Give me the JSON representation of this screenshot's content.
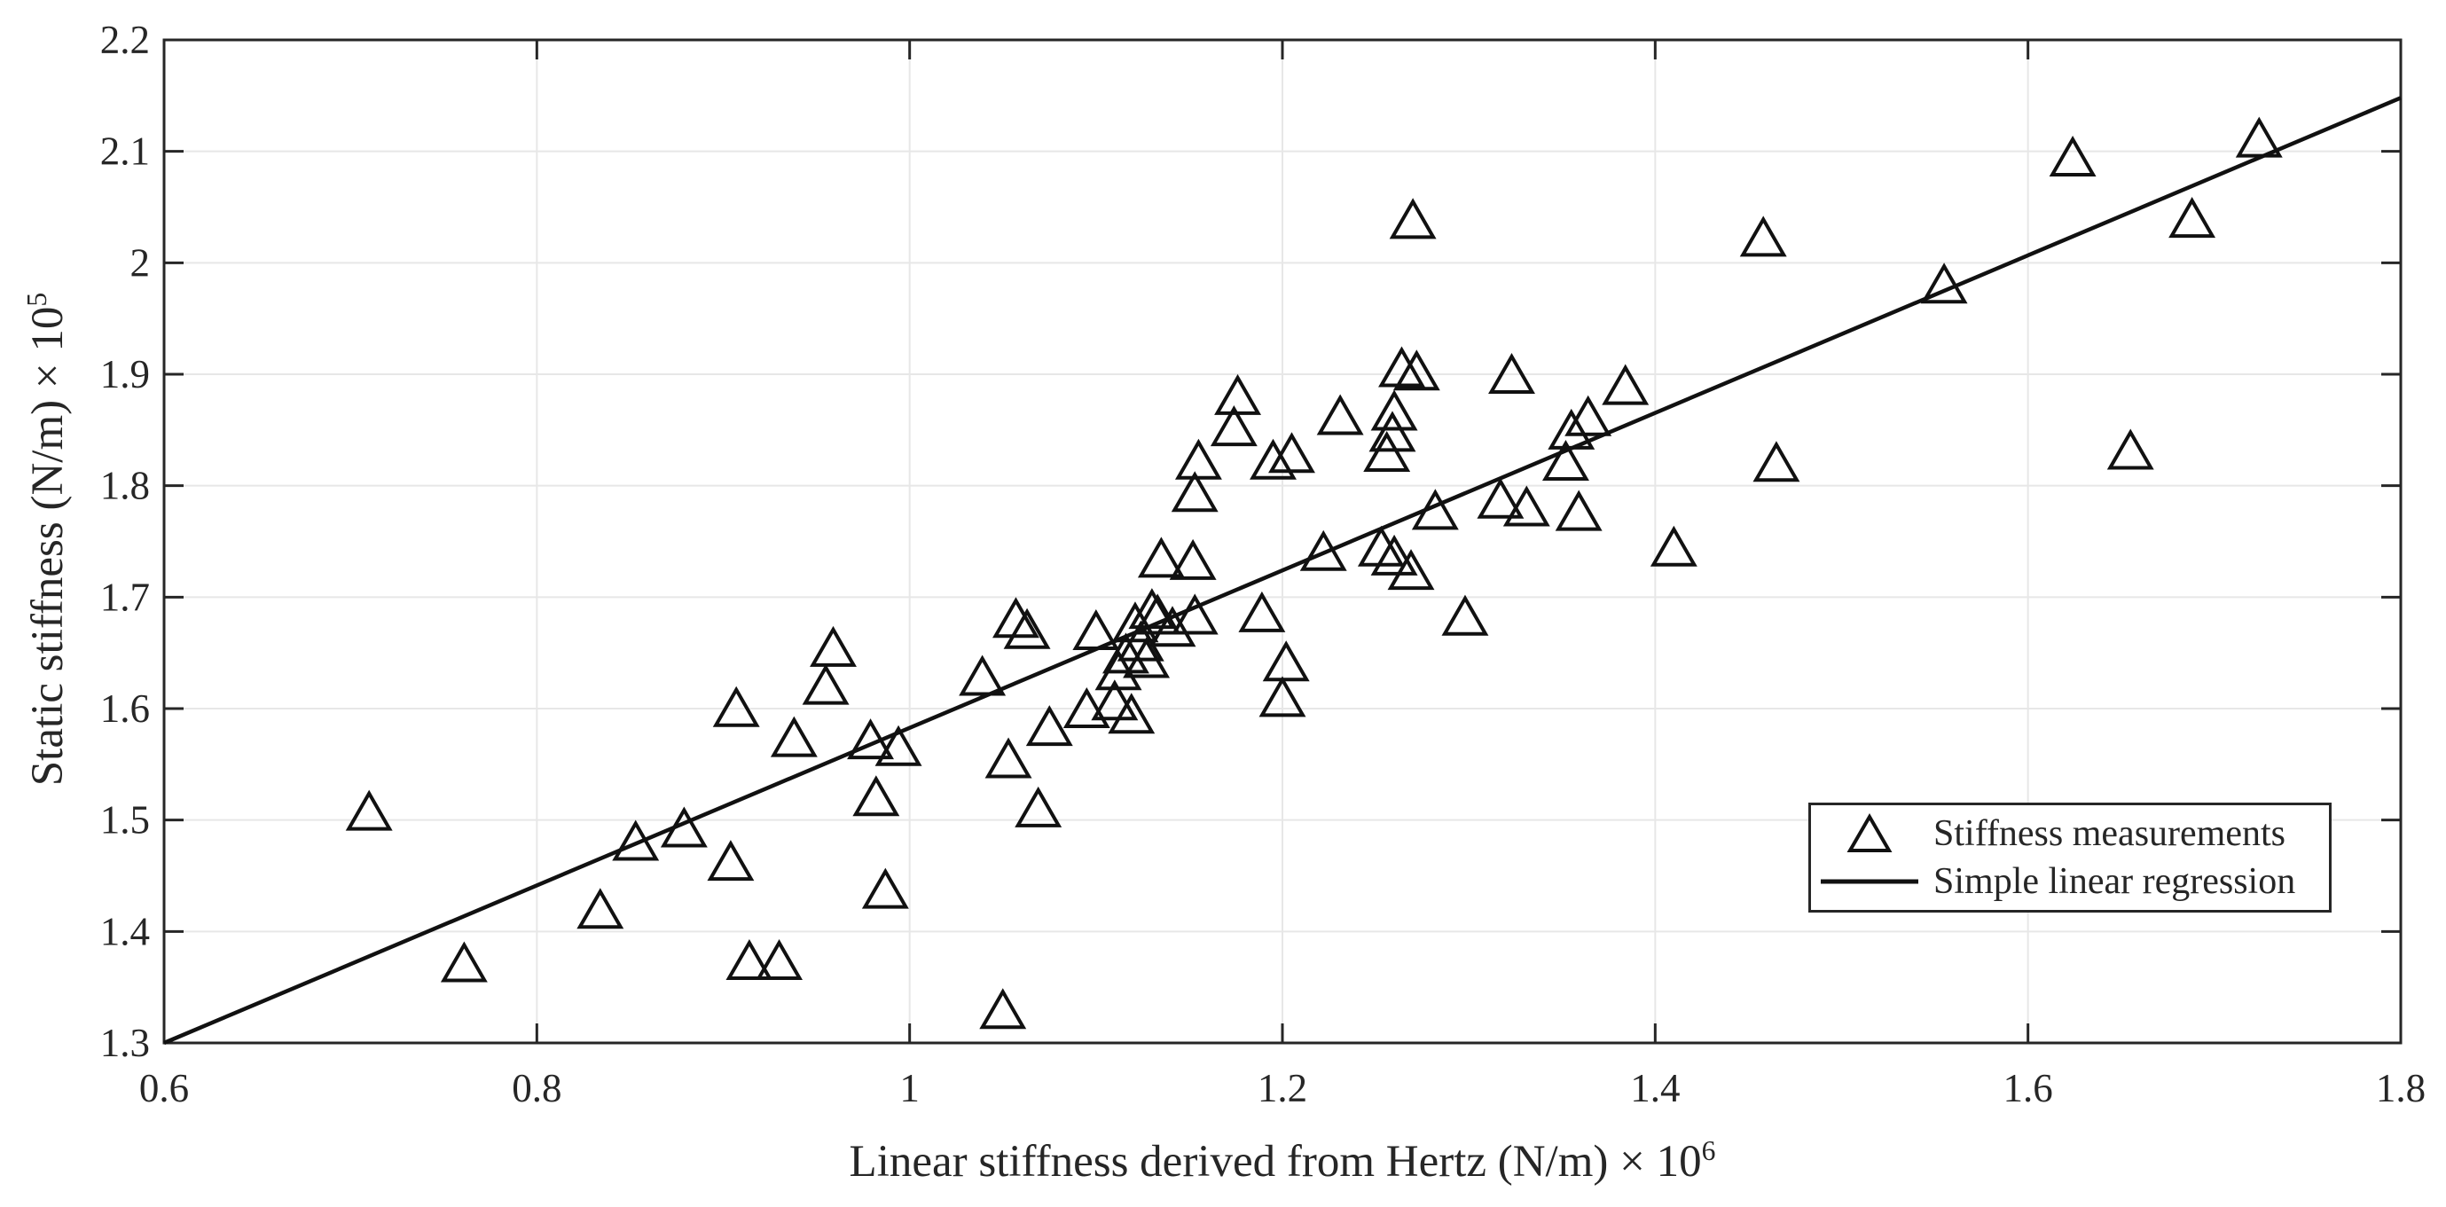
{
  "chart_data": {
    "type": "scatter",
    "xlabel": "Linear stiffness derived from Hertz (N/m) × 10^6",
    "ylabel": "Static stiffness (N/m) × 10^5",
    "xlabel_main": "Linear stiffness derived from Hertz (N/m) × 10",
    "xlabel_exponent": "6",
    "ylabel_main": "Static stiffness (N/m) × 10",
    "ylabel_exponent": "5",
    "xlim": [
      0.6,
      1.8
    ],
    "ylim": [
      1.3,
      2.2
    ],
    "x_ticks": [
      0.6,
      0.8,
      1,
      1.2,
      1.4,
      1.6,
      1.8
    ],
    "x_tick_labels": [
      "0.6",
      "0.8",
      "1",
      "1.2",
      "1.4",
      "1.6",
      "1.8"
    ],
    "y_ticks": [
      1.3,
      1.4,
      1.5,
      1.6,
      1.7,
      1.8,
      1.9,
      2,
      2.1,
      2.2
    ],
    "y_tick_labels": [
      "1.3",
      "1.4",
      "1.5",
      "1.6",
      "1.7",
      "1.8",
      "1.9",
      "2",
      "2.1",
      "2.2"
    ],
    "grid": true,
    "legend": {
      "position": "southeast",
      "entries": [
        {
          "marker": "triangle",
          "label": "Stiffness measurements"
        },
        {
          "marker": "line",
          "label": "Simple linear regression"
        }
      ]
    },
    "colors": {
      "marker": "#111111",
      "regression_line": "#111111",
      "axis": "#262626",
      "grid": "#e7e7e7",
      "text": "#262626",
      "background": "#ffffff"
    },
    "series": [
      {
        "name": "Stiffness measurements",
        "type": "scatter",
        "marker": "triangle-up",
        "points": [
          [
            0.71,
            1.508
          ],
          [
            0.761,
            1.372
          ],
          [
            0.834,
            1.42
          ],
          [
            0.853,
            1.481
          ],
          [
            0.879,
            1.493
          ],
          [
            0.904,
            1.463
          ],
          [
            0.914,
            1.374
          ],
          [
            0.93,
            1.374
          ],
          [
            0.907,
            1.601
          ],
          [
            0.938,
            1.574
          ],
          [
            0.959,
            1.655
          ],
          [
            0.955,
            1.621
          ],
          [
            0.979,
            1.572
          ],
          [
            0.994,
            1.566
          ],
          [
            0.982,
            1.521
          ],
          [
            0.987,
            1.438
          ],
          [
            1.05,
            1.33
          ],
          [
            1.039,
            1.629
          ],
          [
            1.057,
            1.681
          ],
          [
            1.063,
            1.671
          ],
          [
            1.053,
            1.555
          ],
          [
            1.069,
            1.511
          ],
          [
            1.075,
            1.584
          ],
          [
            1.095,
            1.6
          ],
          [
            1.11,
            1.607
          ],
          [
            1.119,
            1.595
          ],
          [
            1.1,
            1.67
          ],
          [
            1.13,
            1.689
          ],
          [
            1.121,
            1.677
          ],
          [
            1.141,
            1.673
          ],
          [
            1.133,
            1.684
          ],
          [
            1.124,
            1.66
          ],
          [
            1.116,
            1.649
          ],
          [
            1.127,
            1.645
          ],
          [
            1.112,
            1.634
          ],
          [
            1.153,
            1.684
          ],
          [
            1.189,
            1.686
          ],
          [
            1.202,
            1.642
          ],
          [
            1.2,
            1.61
          ],
          [
            1.135,
            1.735
          ],
          [
            1.152,
            1.733
          ],
          [
            1.155,
            1.823
          ],
          [
            1.153,
            1.794
          ],
          [
            1.174,
            1.853
          ],
          [
            1.176,
            1.881
          ],
          [
            1.195,
            1.823
          ],
          [
            1.205,
            1.829
          ],
          [
            1.231,
            1.863
          ],
          [
            1.222,
            1.741
          ],
          [
            1.253,
            1.745
          ],
          [
            1.26,
            1.737
          ],
          [
            1.269,
            1.724
          ],
          [
            1.264,
            1.906
          ],
          [
            1.272,
            1.903
          ],
          [
            1.26,
            1.867
          ],
          [
            1.259,
            1.848
          ],
          [
            1.256,
            1.83
          ],
          [
            1.27,
            2.039
          ],
          [
            1.298,
            1.683
          ],
          [
            1.282,
            1.778
          ],
          [
            1.317,
            1.788
          ],
          [
            1.331,
            1.781
          ],
          [
            1.359,
            1.777
          ],
          [
            1.323,
            1.9
          ],
          [
            1.355,
            1.85
          ],
          [
            1.364,
            1.862
          ],
          [
            1.352,
            1.822
          ],
          [
            1.384,
            1.89
          ],
          [
            1.41,
            1.745
          ],
          [
            1.458,
            2.023
          ],
          [
            1.465,
            1.821
          ],
          [
            1.555,
            1.981
          ],
          [
            1.624,
            2.095
          ],
          [
            1.655,
            1.832
          ],
          [
            1.688,
            2.04
          ],
          [
            1.724,
            2.112
          ]
        ]
      },
      {
        "name": "Simple linear regression",
        "type": "line",
        "points": [
          [
            0.6,
            1.3
          ],
          [
            1.8,
            2.148
          ]
        ]
      }
    ]
  }
}
